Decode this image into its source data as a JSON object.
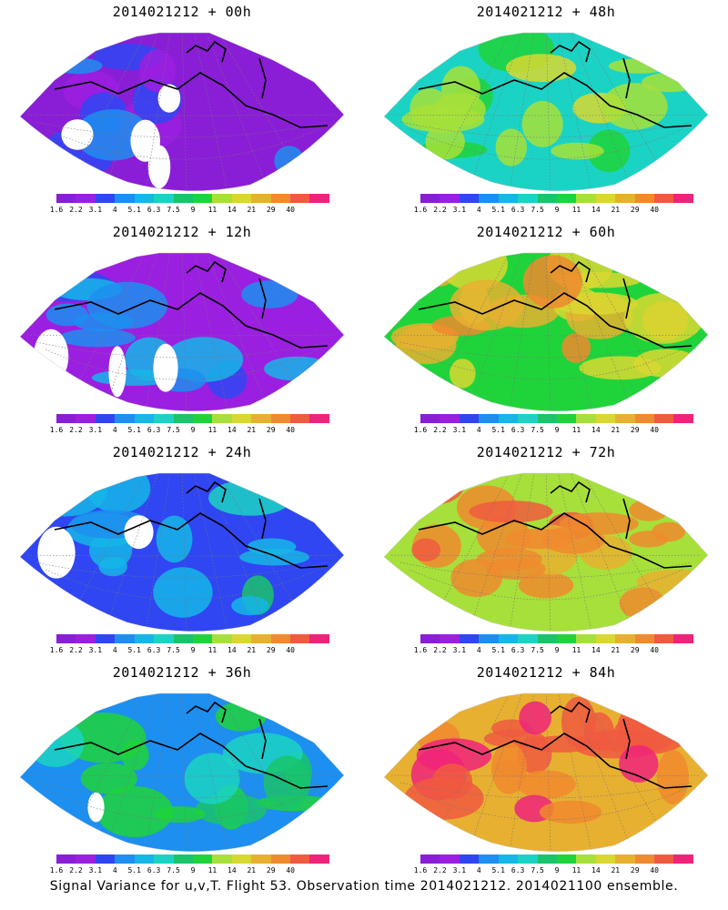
{
  "colorbar": {
    "labels": [
      "1.6",
      "2.2",
      "3.1",
      "4",
      "5.1",
      "6.3",
      "7.5",
      "9",
      "11",
      "14",
      "21",
      "29",
      "40"
    ],
    "colors": [
      "#8a1ed6",
      "#9b1fe0",
      "#2f46f2",
      "#1c8ff0",
      "#15b6e8",
      "#1bd3c4",
      "#19c46a",
      "#1fd43a",
      "#a7e03a",
      "#d9d831",
      "#e8b030",
      "#f08a2e",
      "#f05b40",
      "#f0237a"
    ]
  },
  "panels": [
    {
      "title": "2014021212 + 00h",
      "level": 0.1
    },
    {
      "title": "2014021212 + 48h",
      "level": 0.55
    },
    {
      "title": "2014021212 + 12h",
      "level": 0.2
    },
    {
      "title": "2014021212 + 60h",
      "level": 0.7
    },
    {
      "title": "2014021212 + 24h",
      "level": 0.3
    },
    {
      "title": "2014021212 + 72h",
      "level": 0.8
    },
    {
      "title": "2014021212 + 36h",
      "level": 0.42
    },
    {
      "title": "2014021212 + 84h",
      "level": 0.9
    }
  ],
  "footer": "Signal Variance for u,v,T. Flight 53. Observation time 2014021212. 2014021100 ensemble."
}
